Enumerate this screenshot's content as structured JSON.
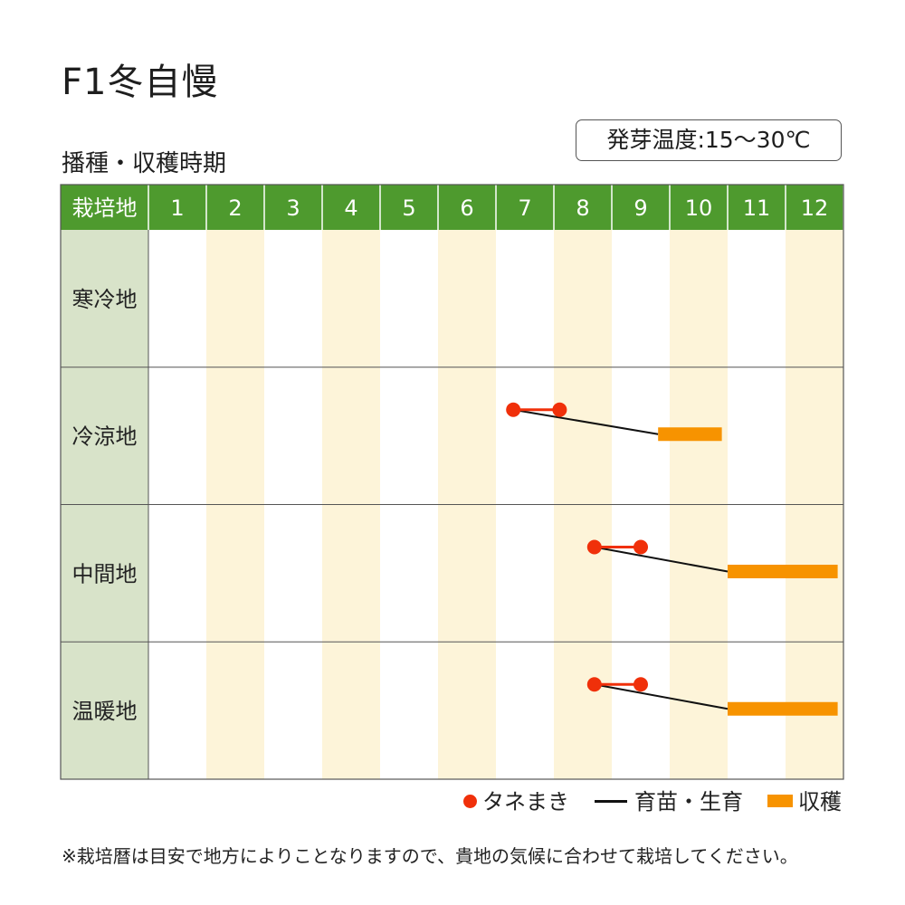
{
  "title": "F1冬自慢",
  "subtitle": "播種・収穫時期",
  "temperature_box": "発芽温度:15〜30℃",
  "legend": {
    "sowing": "タネまき",
    "nursery": "育苗・生育",
    "harvest": "収穫"
  },
  "note": "※栽培暦は目安で地方によりことなりますので、貴地の気候に合わせて栽培してください。",
  "colors": {
    "header_green": "#4e9a2e",
    "region_column": "#d8e3c9",
    "stripe": "#fdf4d9",
    "sowing_red": "#f0300a",
    "harvest_orange": "#f79300",
    "line": "#111111"
  },
  "chart_data": {
    "type": "gantt",
    "header_label": "栽培地",
    "months": [
      "1",
      "2",
      "3",
      "4",
      "5",
      "6",
      "7",
      "8",
      "9",
      "10",
      "11",
      "12"
    ],
    "rows": [
      {
        "region": "寒冷地",
        "sowing": null,
        "growth_end": null,
        "harvest": null
      },
      {
        "region": "冷涼地",
        "sowing": [
          7.3,
          8.1
        ],
        "growth_end": 9.8,
        "harvest": [
          9.8,
          10.9
        ]
      },
      {
        "region": "中間地",
        "sowing": [
          8.7,
          9.5
        ],
        "growth_end": 11.0,
        "harvest": [
          11.0,
          12.9
        ]
      },
      {
        "region": "温暖地",
        "sowing": [
          8.7,
          9.5
        ],
        "growth_end": 11.0,
        "harvest": [
          11.0,
          12.9
        ]
      }
    ]
  }
}
